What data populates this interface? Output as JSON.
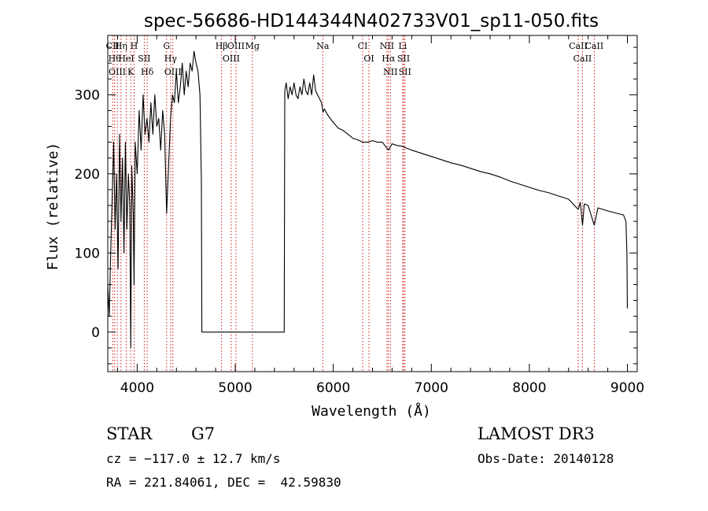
{
  "chart_data": {
    "type": "line",
    "title": "spec-56686-HD144344N402733V01_sp11-050.fits",
    "xlabel": "Wavelength (Å)",
    "ylabel": "Flux (relative)",
    "xlim": [
      3700,
      9100
    ],
    "ylim": [
      -50,
      375
    ],
    "xticks": [
      4000,
      5000,
      6000,
      7000,
      8000,
      9000
    ],
    "yticks": [
      0,
      100,
      200,
      300
    ],
    "grid": false,
    "legend": "none",
    "series": [
      {
        "values": [
          [
            3700,
            60
          ],
          [
            3715,
            20
          ],
          [
            3730,
            100
          ],
          [
            3745,
            170
          ],
          [
            3760,
            240
          ],
          [
            3775,
            130
          ],
          [
            3790,
            200
          ],
          [
            3805,
            80
          ],
          [
            3820,
            250
          ],
          [
            3835,
            140
          ],
          [
            3850,
            220
          ],
          [
            3865,
            100
          ],
          [
            3880,
            240
          ],
          [
            3895,
            130
          ],
          [
            3910,
            200
          ],
          [
            3925,
            160
          ],
          [
            3934,
            -20
          ],
          [
            3945,
            210
          ],
          [
            3960,
            150
          ],
          [
            3968,
            60
          ],
          [
            3980,
            240
          ],
          [
            4000,
            200
          ],
          [
            4020,
            280
          ],
          [
            4040,
            230
          ],
          [
            4060,
            300
          ],
          [
            4080,
            250
          ],
          [
            4100,
            270
          ],
          [
            4120,
            240
          ],
          [
            4140,
            290
          ],
          [
            4160,
            250
          ],
          [
            4180,
            300
          ],
          [
            4200,
            260
          ],
          [
            4220,
            270
          ],
          [
            4240,
            230
          ],
          [
            4260,
            280
          ],
          [
            4280,
            250
          ],
          [
            4300,
            150
          ],
          [
            4320,
            210
          ],
          [
            4340,
            270
          ],
          [
            4360,
            300
          ],
          [
            4380,
            290
          ],
          [
            4400,
            330
          ],
          [
            4420,
            290
          ],
          [
            4440,
            310
          ],
          [
            4460,
            340
          ],
          [
            4480,
            300
          ],
          [
            4500,
            330
          ],
          [
            4520,
            310
          ],
          [
            4540,
            340
          ],
          [
            4560,
            330
          ],
          [
            4580,
            355
          ],
          [
            4600,
            340
          ],
          [
            4620,
            330
          ],
          [
            4640,
            300
          ],
          [
            4655,
            190
          ],
          [
            4660,
            0
          ],
          [
            5500,
            0
          ],
          [
            5505,
            305
          ],
          [
            5520,
            315
          ],
          [
            5540,
            295
          ],
          [
            5560,
            310
          ],
          [
            5580,
            300
          ],
          [
            5600,
            315
          ],
          [
            5620,
            300
          ],
          [
            5640,
            295
          ],
          [
            5660,
            310
          ],
          [
            5680,
            300
          ],
          [
            5700,
            320
          ],
          [
            5720,
            305
          ],
          [
            5740,
            300
          ],
          [
            5760,
            315
          ],
          [
            5780,
            300
          ],
          [
            5800,
            325
          ],
          [
            5820,
            305
          ],
          [
            5840,
            300
          ],
          [
            5860,
            295
          ],
          [
            5880,
            290
          ],
          [
            5895,
            278
          ],
          [
            5910,
            282
          ],
          [
            5940,
            275
          ],
          [
            5970,
            270
          ],
          [
            6000,
            265
          ],
          [
            6050,
            258
          ],
          [
            6100,
            255
          ],
          [
            6150,
            250
          ],
          [
            6200,
            245
          ],
          [
            6250,
            243
          ],
          [
            6300,
            240
          ],
          [
            6350,
            240
          ],
          [
            6400,
            242
          ],
          [
            6450,
            240
          ],
          [
            6500,
            240
          ],
          [
            6563,
            230
          ],
          [
            6600,
            238
          ],
          [
            6650,
            236
          ],
          [
            6700,
            235
          ],
          [
            6800,
            230
          ],
          [
            6900,
            226
          ],
          [
            7000,
            222
          ],
          [
            7100,
            218
          ],
          [
            7200,
            214
          ],
          [
            7300,
            211
          ],
          [
            7400,
            207
          ],
          [
            7500,
            203
          ],
          [
            7600,
            200
          ],
          [
            7700,
            196
          ],
          [
            7800,
            191
          ],
          [
            7900,
            187
          ],
          [
            8000,
            183
          ],
          [
            8100,
            179
          ],
          [
            8200,
            176
          ],
          [
            8300,
            172
          ],
          [
            8400,
            168
          ],
          [
            8498,
            155
          ],
          [
            8520,
            164
          ],
          [
            8542,
            135
          ],
          [
            8560,
            162
          ],
          [
            8600,
            160
          ],
          [
            8662,
            135
          ],
          [
            8700,
            157
          ],
          [
            8800,
            153
          ],
          [
            8900,
            150
          ],
          [
            8960,
            148
          ],
          [
            8985,
            140
          ],
          [
            8995,
            100
          ],
          [
            9000,
            30
          ]
        ]
      }
    ],
    "lines": [
      {
        "x": 3750,
        "label": "CII"
      },
      {
        "x": 3770,
        "label": "Hθ"
      },
      {
        "x": 3797,
        "label": "OIII"
      },
      {
        "x": 3835,
        "label": "Hη"
      },
      {
        "x": 3889,
        "label": "HeI"
      },
      {
        "x": 3934,
        "label": "K"
      },
      {
        "x": 3968,
        "label": "H"
      },
      {
        "x": 4072,
        "label": "SII"
      },
      {
        "x": 4102,
        "label": "Hδ"
      },
      {
        "x": 4300,
        "label": "G"
      },
      {
        "x": 4341,
        "label": "Hγ"
      },
      {
        "x": 4364,
        "label": "OIII"
      },
      {
        "x": 4861,
        "label": "Hβ"
      },
      {
        "x": 4959,
        "label": "OIII"
      },
      {
        "x": 5007,
        "label": "OIII"
      },
      {
        "x": 5175,
        "label": "Mg"
      },
      {
        "x": 5893,
        "label": "Na"
      },
      {
        "x": 6300,
        "label": "CI"
      },
      {
        "x": 6364,
        "label": "OI"
      },
      {
        "x": 6548,
        "label": "NII"
      },
      {
        "x": 6563,
        "label": "Hα"
      },
      {
        "x": 6583,
        "label": "NII"
      },
      {
        "x": 6708,
        "label": "Li"
      },
      {
        "x": 6717,
        "label": "SII"
      },
      {
        "x": 6731,
        "label": "SII"
      },
      {
        "x": 8498,
        "label": "CaII"
      },
      {
        "x": 8542,
        "label": "CaII"
      },
      {
        "x": 8662,
        "label": "CaII"
      }
    ]
  },
  "info": {
    "object_type": "STAR",
    "subclass": "G7",
    "survey": "LAMOST DR3",
    "cz": "cz = −117.0 ± 12.7 km/s",
    "obs_date": "Obs-Date: 20140128",
    "coords": "RA = 221.84061, DEC =  42.59830"
  },
  "colors": {
    "spectrum": "#000000",
    "line_markers": "#cc0000",
    "axes": "#000000"
  }
}
